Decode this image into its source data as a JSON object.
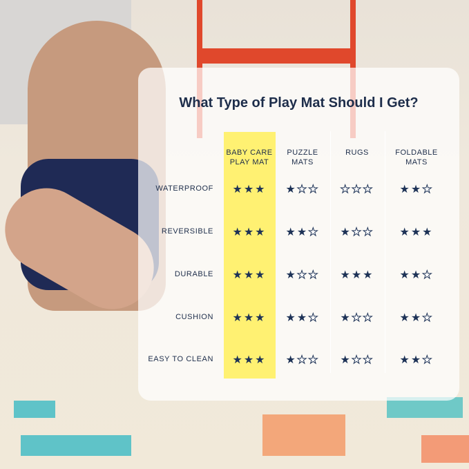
{
  "title": "What Type of Play Mat Should I Get?",
  "columns": [
    "BABY CARE\nPLAY MAT",
    "PUZZLE\nMATS",
    "RUGS",
    "FOLDABLE\nMATS"
  ],
  "column_labels": [
    [
      "BABY CARE",
      "PLAY MAT"
    ],
    [
      "PUZZLE",
      "MATS"
    ],
    [
      "RUGS",
      ""
    ],
    [
      "FOLDABLE",
      "MATS"
    ]
  ],
  "highlight_color": "#fff172",
  "star_color": "#1d3256",
  "max_stars": 3,
  "rows": [
    {
      "label": "WATERPROOF",
      "ratings": [
        3,
        1,
        0,
        2
      ]
    },
    {
      "label": "REVERSIBLE",
      "ratings": [
        3,
        2,
        1,
        3
      ]
    },
    {
      "label": "DURABLE",
      "ratings": [
        3,
        1,
        3,
        2
      ]
    },
    {
      "label": "CUSHION",
      "ratings": [
        3,
        2,
        1,
        2
      ]
    },
    {
      "label": "EASY TO CLEAN",
      "ratings": [
        3,
        1,
        1,
        2
      ]
    }
  ]
}
